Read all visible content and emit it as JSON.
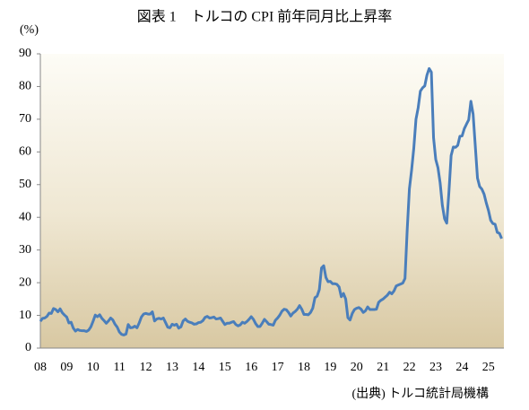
{
  "chart_data": {
    "type": "line",
    "title": "図表 1　トルコの CPI 前年同月比上昇率",
    "y_label": "(%)",
    "source": "(出典) トルコ統計局機構",
    "color": "#4a7ebb",
    "categories": [
      "08",
      null,
      null,
      null,
      null,
      null,
      null,
      null,
      null,
      null,
      null,
      null,
      "09",
      null,
      null,
      null,
      null,
      null,
      null,
      null,
      null,
      null,
      null,
      null,
      "10",
      null,
      null,
      null,
      null,
      null,
      null,
      null,
      null,
      null,
      null,
      null,
      "11",
      null,
      null,
      null,
      null,
      null,
      null,
      null,
      null,
      null,
      null,
      null,
      "12",
      null,
      null,
      null,
      null,
      null,
      null,
      null,
      null,
      null,
      null,
      null,
      "13",
      null,
      null,
      null,
      null,
      null,
      null,
      null,
      null,
      null,
      null,
      null,
      "14",
      null,
      null,
      null,
      null,
      null,
      null,
      null,
      null,
      null,
      null,
      null,
      "15",
      null,
      null,
      null,
      null,
      null,
      null,
      null,
      null,
      null,
      null,
      null,
      "16",
      null,
      null,
      null,
      null,
      null,
      null,
      null,
      null,
      null,
      null,
      null,
      "17",
      null,
      null,
      null,
      null,
      null,
      null,
      null,
      null,
      null,
      null,
      null,
      "18",
      null,
      null,
      null,
      null,
      null,
      null,
      null,
      null,
      null,
      null,
      null,
      "19",
      null,
      null,
      null,
      null,
      null,
      null,
      null,
      null,
      null,
      null,
      null,
      "20",
      null,
      null,
      null,
      null,
      null,
      null,
      null,
      null,
      null,
      null,
      null,
      "21",
      null,
      null,
      null,
      null,
      null,
      null,
      null,
      null,
      null,
      null,
      null,
      "22",
      null,
      null,
      null,
      null,
      null,
      null,
      null,
      null,
      null,
      null,
      null,
      "23",
      null,
      null,
      null,
      null,
      null,
      null,
      null,
      null,
      null,
      null,
      null,
      "24",
      null,
      null,
      null,
      null,
      null,
      null,
      null,
      null,
      null,
      null,
      null,
      "25",
      null,
      null,
      null,
      null,
      null,
      null
    ],
    "values": [
      8.2,
      9.1,
      9.2,
      9.7,
      10.7,
      10.6,
      12.1,
      11.8,
      11.1,
      12.0,
      10.8,
      10.1,
      9.5,
      7.7,
      7.9,
      6.1,
      5.2,
      5.7,
      5.4,
      5.3,
      5.3,
      5.1,
      5.5,
      6.5,
      8.2,
      10.1,
      9.6,
      10.2,
      9.1,
      8.4,
      7.6,
      8.3,
      9.2,
      8.6,
      7.3,
      6.4,
      4.9,
      4.2,
      4.0,
      4.3,
      7.2,
      6.2,
      6.3,
      6.7,
      6.2,
      7.7,
      9.5,
      10.4,
      10.6,
      10.4,
      10.4,
      11.1,
      8.3,
      8.9,
      9.1,
      8.9,
      9.2,
      7.8,
      6.4,
      6.2,
      7.3,
      7.0,
      7.3,
      6.1,
      6.5,
      8.3,
      8.9,
      8.2,
      7.9,
      7.7,
      7.3,
      7.4,
      7.8,
      7.9,
      8.4,
      9.4,
      9.7,
      9.2,
      9.3,
      9.5,
      8.9,
      9.0,
      9.2,
      8.2,
      7.2,
      7.6,
      7.6,
      7.9,
      8.1,
      7.2,
      6.8,
      7.1,
      7.9,
      7.6,
      8.1,
      8.8,
      9.6,
      8.8,
      7.5,
      6.6,
      6.6,
      7.6,
      8.8,
      8.1,
      7.3,
      7.2,
      7.0,
      8.5,
      9.2,
      10.1,
      11.3,
      11.9,
      11.7,
      10.9,
      9.8,
      10.7,
      11.2,
      11.9,
      13.0,
      11.9,
      10.3,
      10.3,
      10.2,
      10.9,
      12.2,
      15.4,
      15.9,
      17.9,
      24.5,
      25.2,
      21.6,
      20.3,
      20.4,
      19.7,
      19.7,
      19.5,
      18.7,
      15.7,
      16.7,
      15.0,
      9.3,
      8.6,
      10.6,
      11.8,
      12.2,
      12.4,
      11.9,
      10.9,
      11.4,
      12.6,
      11.8,
      11.8,
      11.8,
      11.9,
      14.0,
      14.6,
      15.0,
      15.6,
      16.2,
      17.1,
      16.6,
      17.5,
      19.0,
      19.3,
      19.6,
      19.9,
      21.3,
      36.1,
      48.7,
      54.4,
      61.1,
      70.0,
      73.5,
      78.6,
      79.6,
      80.2,
      83.5,
      85.5,
      84.4,
      64.3,
      57.7,
      55.2,
      50.5,
      43.7,
      39.6,
      38.2,
      47.8,
      58.9,
      61.5,
      61.4,
      62.0,
      64.8,
      64.9,
      67.1,
      68.5,
      69.8,
      75.5,
      71.6,
      61.8,
      52.0,
      49.4,
      48.6,
      47.1,
      44.4,
      42.1,
      39.1,
      38.1,
      37.9,
      35.4,
      35.1,
      33.5
    ],
    "ylim": [
      0,
      90
    ],
    "yticks": [
      0,
      10,
      20,
      30,
      40,
      50,
      60,
      70,
      80,
      90
    ],
    "grid": false
  }
}
